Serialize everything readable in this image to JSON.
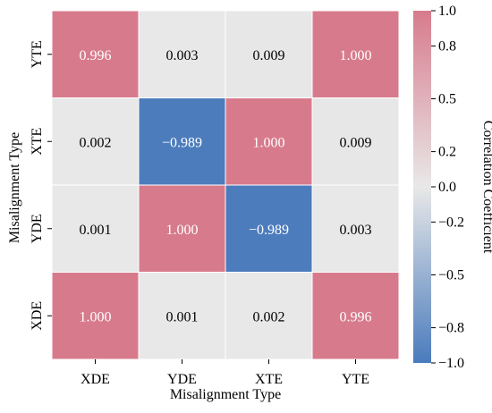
{
  "chart_data": {
    "type": "heatmap",
    "title": "",
    "xlabel": "Misalignment Type",
    "ylabel": "Misalignment Type",
    "x_categories": [
      "XDE",
      "YDE",
      "XTE",
      "YTE"
    ],
    "y_categories_top_to_bottom": [
      "YTE",
      "XTE",
      "YDE",
      "XDE"
    ],
    "values": [
      [
        0.996,
        0.003,
        0.009,
        1.0
      ],
      [
        0.002,
        -0.989,
        1.0,
        0.009
      ],
      [
        0.001,
        1.0,
        -0.989,
        0.003
      ],
      [
        1.0,
        0.001,
        0.002,
        0.996
      ]
    ],
    "colorbar": {
      "label": "Correlation Coefficient",
      "range": [
        -1.0,
        1.0
      ],
      "ticks": [
        1.0,
        0.8,
        0.5,
        0.2,
        0.0,
        -0.2,
        -0.5,
        -0.8,
        -1.0
      ],
      "tick_labels": [
        "1.0",
        "0.8",
        "0.5",
        "0.2",
        "0.0",
        "−0.2",
        "−0.5",
        "−0.8",
        "−1.0"
      ],
      "colors": {
        "low": "#4a7bbc",
        "mid": "#e8e8e8",
        "high": "#d77b8c"
      }
    },
    "grid": true,
    "legend": "colorbar-right"
  }
}
